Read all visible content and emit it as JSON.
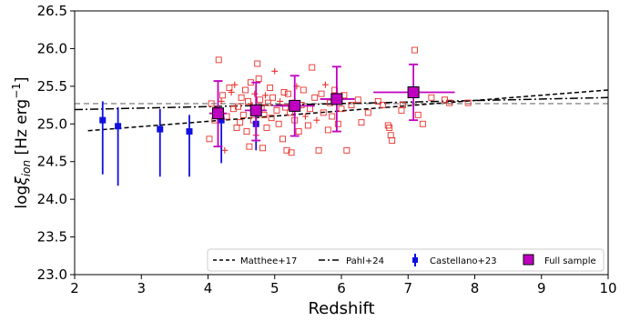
{
  "chart_data": {
    "type": "scatter",
    "xlabel": "Redshift",
    "ylabel_main": "log",
    "ylabel_xi": "ξ",
    "ylabel_sub": "ion",
    "ylabel_units": " [Hz erg",
    "ylabel_exp": "−1",
    "ylabel_close": "]",
    "xlim": [
      2,
      10
    ],
    "ylim": [
      23.0,
      26.5
    ],
    "xticks": [
      2,
      3,
      4,
      5,
      6,
      7,
      8,
      9,
      10
    ],
    "yticks": [
      23.0,
      23.5,
      24.0,
      24.5,
      25.0,
      25.5,
      26.0,
      26.5
    ],
    "ytick_labels": [
      "23.0",
      "23.5",
      "24.0",
      "24.5",
      "25.0",
      "25.5",
      "26.0",
      "26.5"
    ],
    "reference_line_y": 25.27,
    "colors": {
      "matthee": "#000000",
      "pahl": "#000000",
      "castellano": "#1010e0",
      "full": "#c000c0",
      "points": "#e8302a",
      "reference": "#888888"
    },
    "legend_placement": "bottom-right",
    "legend": [
      {
        "label": "Matthee+17",
        "style": "dashed"
      },
      {
        "label": "Pahl+24",
        "style": "dashdot"
      },
      {
        "label": "Castellano+23",
        "style": "blue-errorbar"
      },
      {
        "label": "Full sample",
        "style": "magenta-square"
      }
    ],
    "matthee_line": {
      "x": [
        2.2,
        10.0
      ],
      "y": [
        24.91,
        25.45
      ]
    },
    "pahl_line": {
      "x": [
        2.0,
        10.0
      ],
      "y": [
        25.19,
        25.35
      ]
    },
    "castellano": [
      {
        "x": 2.42,
        "y": 25.05,
        "lo": 24.33,
        "hi": 25.3
      },
      {
        "x": 2.65,
        "y": 24.97,
        "lo": 24.18,
        "hi": 25.22
      },
      {
        "x": 3.28,
        "y": 24.93,
        "lo": 24.3,
        "hi": 25.2
      },
      {
        "x": 3.72,
        "y": 24.9,
        "lo": 24.3,
        "hi": 25.12
      },
      {
        "x": 4.2,
        "y": 25.05,
        "lo": 24.48,
        "hi": 25.18
      },
      {
        "x": 4.72,
        "y": 25.0,
        "lo": 24.65,
        "hi": 25.22
      }
    ],
    "full_sample": [
      {
        "x": 4.15,
        "y": 25.14,
        "xlo": 4.02,
        "xhi": 4.28,
        "ylo": 24.7,
        "yhi": 25.57
      },
      {
        "x": 4.72,
        "y": 25.18,
        "xlo": 4.55,
        "xhi": 4.88,
        "ylo": 24.78,
        "yhi": 25.55
      },
      {
        "x": 5.3,
        "y": 25.24,
        "xlo": 4.98,
        "xhi": 5.6,
        "ylo": 24.84,
        "yhi": 25.64
      },
      {
        "x": 5.93,
        "y": 25.33,
        "xlo": 5.68,
        "xhi": 6.2,
        "ylo": 24.9,
        "yhi": 25.76
      },
      {
        "x": 7.08,
        "y": 25.42,
        "xlo": 6.48,
        "xhi": 7.7,
        "ylo": 25.05,
        "yhi": 25.79
      }
    ],
    "individual_points": [
      {
        "x": 4.02,
        "y": 24.8,
        "m": "s"
      },
      {
        "x": 4.05,
        "y": 25.27,
        "m": "s"
      },
      {
        "x": 4.1,
        "y": 25.05,
        "m": "s"
      },
      {
        "x": 4.13,
        "y": 25.18,
        "m": "s"
      },
      {
        "x": 4.16,
        "y": 25.85,
        "m": "s"
      },
      {
        "x": 4.2,
        "y": 25.3,
        "m": "p"
      },
      {
        "x": 4.22,
        "y": 25.38,
        "m": "s"
      },
      {
        "x": 4.25,
        "y": 24.65,
        "m": "p"
      },
      {
        "x": 4.28,
        "y": 25.1,
        "m": "s"
      },
      {
        "x": 4.32,
        "y": 25.48,
        "m": "s"
      },
      {
        "x": 4.35,
        "y": 25.42,
        "m": "p"
      },
      {
        "x": 4.38,
        "y": 25.2,
        "m": "s"
      },
      {
        "x": 4.4,
        "y": 25.52,
        "m": "p"
      },
      {
        "x": 4.43,
        "y": 24.95,
        "m": "s"
      },
      {
        "x": 4.45,
        "y": 25.23,
        "m": "s"
      },
      {
        "x": 4.48,
        "y": 25.02,
        "m": "s"
      },
      {
        "x": 4.5,
        "y": 25.35,
        "m": "s"
      },
      {
        "x": 4.53,
        "y": 25.12,
        "m": "s"
      },
      {
        "x": 4.56,
        "y": 25.45,
        "m": "s"
      },
      {
        "x": 4.58,
        "y": 24.9,
        "m": "s"
      },
      {
        "x": 4.6,
        "y": 25.3,
        "m": "s"
      },
      {
        "x": 4.62,
        "y": 24.7,
        "m": "s"
      },
      {
        "x": 4.64,
        "y": 25.55,
        "m": "s"
      },
      {
        "x": 4.66,
        "y": 25.25,
        "m": "p"
      },
      {
        "x": 4.68,
        "y": 25.05,
        "m": "s"
      },
      {
        "x": 4.7,
        "y": 25.4,
        "m": "p"
      },
      {
        "x": 4.72,
        "y": 24.85,
        "m": "p"
      },
      {
        "x": 4.74,
        "y": 25.8,
        "m": "s"
      },
      {
        "x": 4.76,
        "y": 25.6,
        "m": "s"
      },
      {
        "x": 4.78,
        "y": 25.32,
        "m": "s"
      },
      {
        "x": 4.8,
        "y": 25.22,
        "m": "s"
      },
      {
        "x": 4.82,
        "y": 24.68,
        "m": "s"
      },
      {
        "x": 4.84,
        "y": 25.12,
        "m": "s"
      },
      {
        "x": 4.86,
        "y": 25.38,
        "m": "p"
      },
      {
        "x": 4.88,
        "y": 24.95,
        "m": "s"
      },
      {
        "x": 4.9,
        "y": 25.28,
        "m": "s"
      },
      {
        "x": 4.93,
        "y": 25.48,
        "m": "s"
      },
      {
        "x": 4.95,
        "y": 25.08,
        "m": "s"
      },
      {
        "x": 4.97,
        "y": 25.35,
        "m": "s"
      },
      {
        "x": 5.0,
        "y": 25.7,
        "m": "p"
      },
      {
        "x": 5.03,
        "y": 25.18,
        "m": "s"
      },
      {
        "x": 5.06,
        "y": 25.0,
        "m": "s"
      },
      {
        "x": 5.08,
        "y": 25.3,
        "m": "p"
      },
      {
        "x": 5.12,
        "y": 24.8,
        "m": "s"
      },
      {
        "x": 5.14,
        "y": 25.42,
        "m": "s"
      },
      {
        "x": 5.16,
        "y": 25.22,
        "m": "s"
      },
      {
        "x": 5.18,
        "y": 24.65,
        "m": "s"
      },
      {
        "x": 5.2,
        "y": 25.4,
        "m": "s"
      },
      {
        "x": 5.23,
        "y": 25.15,
        "m": "s"
      },
      {
        "x": 5.25,
        "y": 24.62,
        "m": "s"
      },
      {
        "x": 5.27,
        "y": 25.28,
        "m": "p"
      },
      {
        "x": 5.3,
        "y": 25.05,
        "m": "s"
      },
      {
        "x": 5.33,
        "y": 25.5,
        "m": "p"
      },
      {
        "x": 5.36,
        "y": 24.9,
        "m": "s"
      },
      {
        "x": 5.4,
        "y": 25.25,
        "m": "s"
      },
      {
        "x": 5.43,
        "y": 25.45,
        "m": "s"
      },
      {
        "x": 5.46,
        "y": 25.1,
        "m": "p"
      },
      {
        "x": 5.5,
        "y": 24.98,
        "m": "s"
      },
      {
        "x": 5.53,
        "y": 25.2,
        "m": "s"
      },
      {
        "x": 5.56,
        "y": 25.75,
        "m": "s"
      },
      {
        "x": 5.6,
        "y": 25.35,
        "m": "s"
      },
      {
        "x": 5.63,
        "y": 25.05,
        "m": "p"
      },
      {
        "x": 5.66,
        "y": 24.65,
        "m": "s"
      },
      {
        "x": 5.7,
        "y": 25.4,
        "m": "s"
      },
      {
        "x": 5.73,
        "y": 25.15,
        "m": "s"
      },
      {
        "x": 5.76,
        "y": 25.52,
        "m": "p"
      },
      {
        "x": 5.8,
        "y": 24.92,
        "m": "s"
      },
      {
        "x": 5.83,
        "y": 25.28,
        "m": "s"
      },
      {
        "x": 5.86,
        "y": 25.1,
        "m": "s"
      },
      {
        "x": 5.9,
        "y": 25.45,
        "m": "s"
      },
      {
        "x": 5.95,
        "y": 25.0,
        "m": "s"
      },
      {
        "x": 6.0,
        "y": 25.2,
        "m": "s"
      },
      {
        "x": 6.04,
        "y": 25.38,
        "m": "s"
      },
      {
        "x": 6.08,
        "y": 24.65,
        "m": "s"
      },
      {
        "x": 6.15,
        "y": 25.25,
        "m": "s"
      },
      {
        "x": 6.25,
        "y": 25.32,
        "m": "s"
      },
      {
        "x": 6.3,
        "y": 25.02,
        "m": "s"
      },
      {
        "x": 6.4,
        "y": 25.15,
        "m": "s"
      },
      {
        "x": 6.55,
        "y": 25.3,
        "m": "s"
      },
      {
        "x": 6.62,
        "y": 25.25,
        "m": "s"
      },
      {
        "x": 6.7,
        "y": 24.98,
        "m": "s"
      },
      {
        "x": 6.72,
        "y": 24.95,
        "m": "s"
      },
      {
        "x": 6.74,
        "y": 24.85,
        "m": "s"
      },
      {
        "x": 6.76,
        "y": 24.78,
        "m": "s"
      },
      {
        "x": 6.9,
        "y": 25.18,
        "m": "s"
      },
      {
        "x": 6.92,
        "y": 25.25,
        "m": "s"
      },
      {
        "x": 7.1,
        "y": 25.98,
        "m": "s"
      },
      {
        "x": 7.15,
        "y": 25.12,
        "m": "s"
      },
      {
        "x": 7.22,
        "y": 25.0,
        "m": "s"
      },
      {
        "x": 7.35,
        "y": 25.35,
        "m": "s"
      },
      {
        "x": 7.55,
        "y": 25.32,
        "m": "s"
      },
      {
        "x": 7.62,
        "y": 25.28,
        "m": "s"
      },
      {
        "x": 7.9,
        "y": 25.28,
        "m": "s"
      }
    ]
  }
}
